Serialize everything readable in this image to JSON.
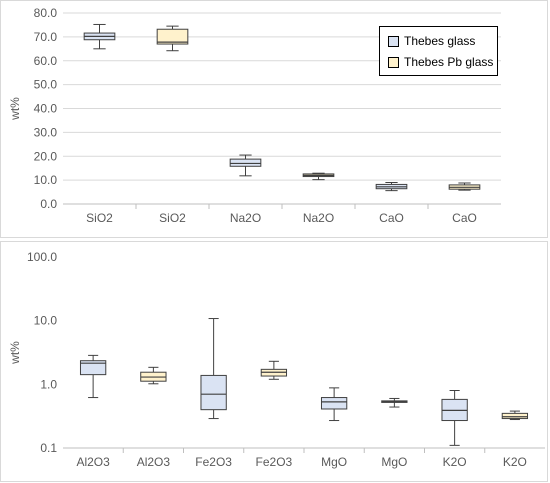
{
  "chart_data": [
    {
      "type": "box",
      "ylabel": "wt%",
      "ylim": [
        0,
        80
      ],
      "yticks": [
        "0.0",
        "10.0",
        "20.0",
        "30.0",
        "40.0",
        "50.0",
        "60.0",
        "70.0",
        "80.0"
      ],
      "yscale": "linear",
      "categories": [
        "SiO2",
        "SiO2",
        "Na2O",
        "Na2O",
        "CaO",
        "CaO"
      ],
      "series": [
        {
          "name": "Thebes glass",
          "color": "#dae3f3",
          "boxes": [
            {
              "category": "SiO2",
              "min": 65.0,
              "q1": 68.8,
              "median": 70.2,
              "q3": 71.6,
              "max": 75.2
            },
            {
              "category": "Na2O",
              "min": 11.8,
              "q1": 15.8,
              "median": 17.0,
              "q3": 18.8,
              "max": 20.5
            },
            {
              "category": "CaO",
              "min": 5.6,
              "q1": 6.4,
              "median": 7.2,
              "q3": 8.2,
              "max": 9.0
            }
          ]
        },
        {
          "name": "Thebes Pb glass",
          "color": "#fff2cc",
          "boxes": [
            {
              "category": "SiO2",
              "min": 64.2,
              "q1": 67.0,
              "median": 67.8,
              "q3": 73.2,
              "max": 74.5
            },
            {
              "category": "Na2O",
              "min": 10.2,
              "q1": 11.5,
              "median": 12.0,
              "q3": 12.6,
              "max": 12.9
            },
            {
              "category": "CaO",
              "min": 5.8,
              "q1": 6.2,
              "median": 7.0,
              "q3": 8.0,
              "max": 8.8
            }
          ]
        }
      ],
      "legend": {
        "position": "top-right",
        "entries": [
          "Thebes glass",
          "Thebes Pb glass"
        ]
      }
    },
    {
      "type": "box",
      "ylabel": "wt%",
      "ylim": [
        0.1,
        100
      ],
      "yscale": "log",
      "yticks": [
        "0.1",
        "1.0",
        "10.0",
        "100.0"
      ],
      "categories": [
        "Al2O3",
        "Al2O3",
        "Fe2O3",
        "Fe2O3",
        "MgO",
        "MgO",
        "K2O",
        "K2O"
      ],
      "series": [
        {
          "name": "Thebes glass",
          "color": "#dae3f3",
          "boxes": [
            {
              "category": "Al2O3",
              "min": 0.62,
              "q1": 1.42,
              "median": 2.15,
              "q3": 2.35,
              "max": 2.85
            },
            {
              "category": "Fe2O3",
              "min": 0.29,
              "q1": 0.4,
              "median": 0.7,
              "q3": 1.38,
              "max": 10.8
            },
            {
              "category": "MgO",
              "min": 0.27,
              "q1": 0.41,
              "median": 0.53,
              "q3": 0.62,
              "max": 0.88
            },
            {
              "category": "K2O",
              "min": 0.11,
              "q1": 0.27,
              "median": 0.39,
              "q3": 0.58,
              "max": 0.8
            }
          ]
        },
        {
          "name": "Thebes Pb glass",
          "color": "#fff2cc",
          "boxes": [
            {
              "category": "Al2O3",
              "min": 1.02,
              "q1": 1.12,
              "median": 1.3,
              "q3": 1.55,
              "max": 1.85
            },
            {
              "category": "Fe2O3",
              "min": 1.2,
              "q1": 1.35,
              "median": 1.55,
              "q3": 1.72,
              "max": 2.3
            },
            {
              "category": "MgO",
              "min": 0.44,
              "q1": 0.52,
              "median": 0.54,
              "q3": 0.55,
              "max": 0.6
            },
            {
              "category": "K2O",
              "min": 0.28,
              "q1": 0.29,
              "median": 0.31,
              "q3": 0.35,
              "max": 0.38
            }
          ]
        }
      ]
    }
  ]
}
